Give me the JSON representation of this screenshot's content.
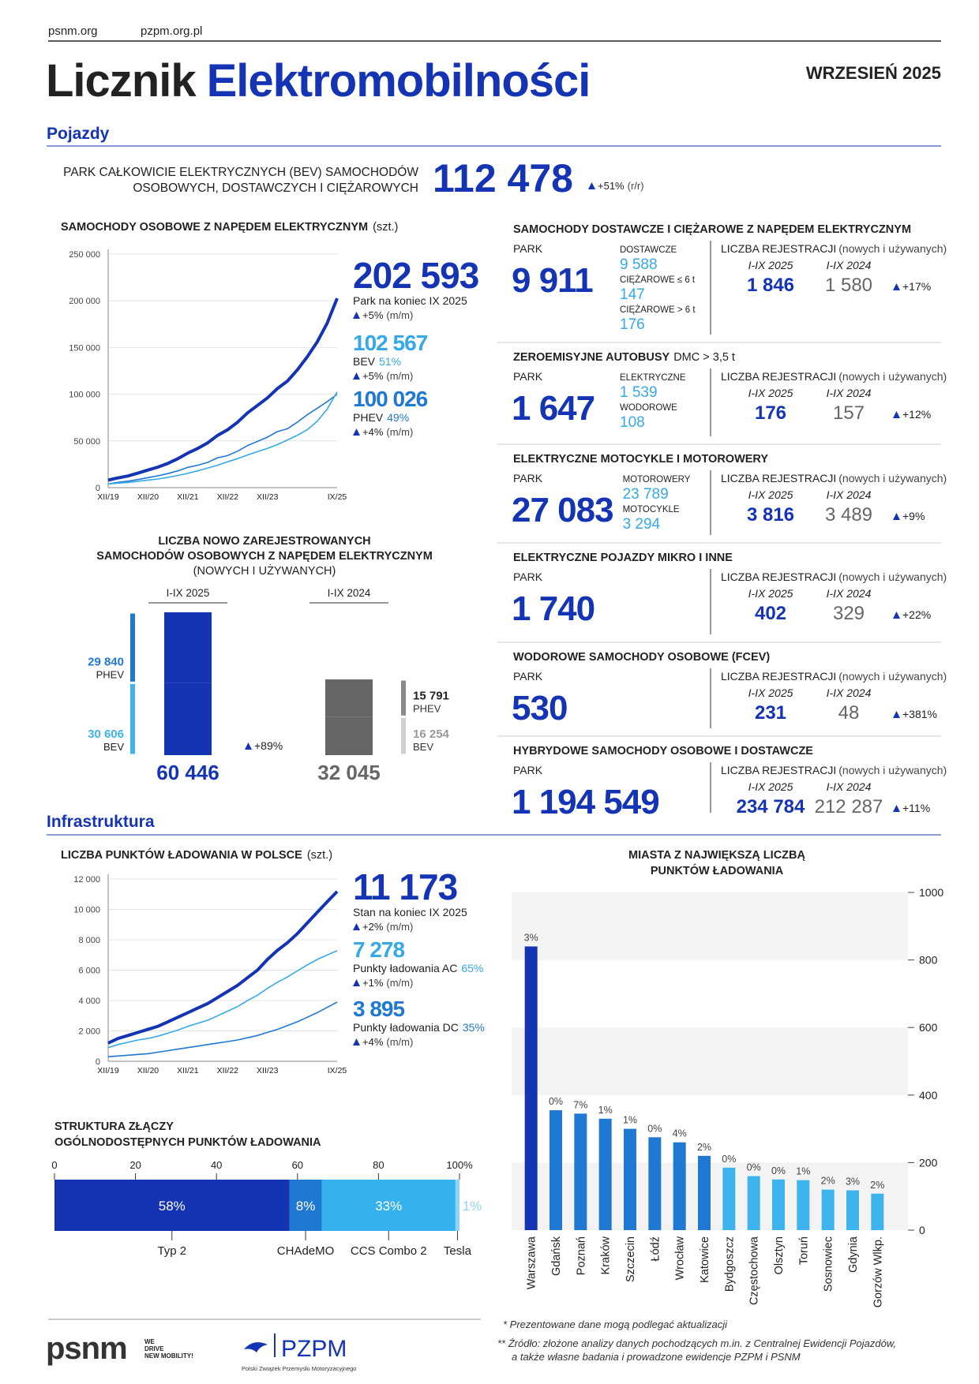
{
  "header": {
    "links": [
      "psnm.org",
      "pzpm.org.pl"
    ],
    "title_dark": "Licznik",
    "title_blue": "Elektromobilności",
    "date": "WRZESIEŃ 2025"
  },
  "vehicles": {
    "heading": "Pojazdy",
    "bev_park": {
      "label": [
        "PARK CAŁKOWICIE ELEKTRYCZNYCH (BEV) SAMOCHODÓW",
        "OSOBOWYCH, DOSTAWCZYCH I CIĘŻAROWYCH"
      ],
      "value": "112 478",
      "change": "+51%",
      "change_note": "(r/r)"
    },
    "panels": [
      {
        "title": "SAMOCHODY DOSTAWCZE I CIĘŻAROWE Z NAPĘDEM ELEKTRYCZNYM",
        "park_label": "PARK",
        "park_value": "9 911",
        "breakdown": [
          {
            "label": "DOSTAWCZE",
            "value": "9 588"
          },
          {
            "label": "CIĘŻAROWE ≤ 6 t",
            "value": "147"
          },
          {
            "label": "CIĘŻAROWE > 6 t",
            "value": "176"
          }
        ],
        "reg_label": "LICZBA REJESTRACJI",
        "reg_note": "(nowych i używanych)",
        "years": [
          "I-IX 2025",
          "I-IX 2024"
        ],
        "reg_values": [
          "1 846",
          "1 580"
        ],
        "change": "+17%"
      },
      {
        "title": "ZEROEMISYJNE AUTOBUSY",
        "title_note": "DMC > 3,5 t",
        "park_label": "PARK",
        "park_value": "1 647",
        "breakdown": [
          {
            "label": "ELEKTRYCZNE",
            "value": "1 539"
          },
          {
            "label": "WODOROWE",
            "value": "108"
          }
        ],
        "reg_label": "LICZBA REJESTRACJI",
        "reg_note": "(nowych i używanych)",
        "years": [
          "I-IX 2025",
          "I-IX 2024"
        ],
        "reg_values": [
          "176",
          "157"
        ],
        "change": "+12%"
      },
      {
        "title": "ELEKTRYCZNE MOTOCYKLE I MOTOROWERY",
        "park_label": "PARK",
        "park_value": "27 083",
        "breakdown": [
          {
            "label": "MOTOROWERY",
            "value": "23 789"
          },
          {
            "label": "MOTOCYKLE",
            "value": "3 294"
          }
        ],
        "reg_label": "LICZBA REJESTRACJI",
        "reg_note": "(nowych i używanych)",
        "years": [
          "I-IX 2025",
          "I-IX 2024"
        ],
        "reg_values": [
          "3 816",
          "3 489"
        ],
        "change": "+9%"
      },
      {
        "title": "ELEKTRYCZNE POJAZDY MIKRO I INNE",
        "park_label": "PARK",
        "park_value": "1 740",
        "reg_label": "LICZBA REJESTRACJI",
        "reg_note": "(nowych i używanych)",
        "years": [
          "I-IX 2025",
          "I-IX 2024"
        ],
        "reg_values": [
          "402",
          "329"
        ],
        "change": "+22%"
      },
      {
        "title": "WODOROWE SAMOCHODY OSOBOWE (FCEV)",
        "park_label": "PARK",
        "park_value": "530",
        "reg_label": "LICZBA REJESTRACJI",
        "reg_note": "(nowych i używanych)",
        "years": [
          "I-IX 2025",
          "I-IX 2024"
        ],
        "reg_values": [
          "231",
          "48"
        ],
        "change": "+381%"
      },
      {
        "title": "HYBRYDOWE SAMOCHODY OSOBOWE I DOSTAWCZE",
        "park_label": "PARK",
        "park_value": "1 194 549",
        "reg_label": "LICZBA REJESTRACJI",
        "reg_note": "(nowych i używanych)",
        "years": [
          "I-IX 2025",
          "I-IX 2024"
        ],
        "reg_values": [
          "234 784",
          "212 287"
        ],
        "change": "+11%"
      }
    ]
  },
  "infrastructure": {
    "heading": "Infrastruktura"
  },
  "chart_data": [
    {
      "type": "line",
      "title": "SAMOCHODY OSOBOWE Z NAPĘDEM ELEKTRYCZNYM",
      "unit": "(szt.)",
      "categories": [
        "XII/19",
        null,
        null,
        null,
        "XII/20",
        null,
        null,
        null,
        "XII/21",
        null,
        null,
        null,
        "XII/22",
        null,
        null,
        null,
        "XII/23",
        null,
        null,
        null,
        null,
        null,
        null,
        "IX/25"
      ],
      "ylim": [
        0,
        250000
      ],
      "yticks": [
        0,
        {
          "value": 50000,
          "label": "50 000"
        },
        {
          "value": 100000,
          "label": "100 000"
        },
        {
          "value": 150000,
          "label": "150 000"
        },
        {
          "value": 200000,
          "label": "200 000"
        },
        {
          "value": 250000,
          "label": "250 000"
        }
      ],
      "grid": true,
      "series": [
        {
          "color": "#1434b4",
          "width": 4,
          "values": [
            8000,
            10500,
            12500,
            15500,
            18800,
            22000,
            26000,
            31000,
            37000,
            42000,
            48000,
            56000,
            62000,
            70000,
            80000,
            88000,
            96000,
            106000,
            114000,
            126000,
            140000,
            156000,
            176000,
            202593
          ],
          "callout": {
            "value": "202 593",
            "caption": "Park na koniec IX 2025",
            "change": "+5%",
            "change_note": "(m/m)"
          }
        },
        {
          "color": "#35a9e8",
          "width": 1.6,
          "values": [
            4000,
            4800,
            5600,
            6800,
            8100,
            9300,
            11000,
            13000,
            15300,
            18000,
            21000,
            24000,
            27700,
            31000,
            35000,
            38500,
            42000,
            46000,
            51000,
            56000,
            62000,
            71000,
            84000,
            102567
          ],
          "callout": {
            "value": "102 567",
            "caption": "BEV",
            "share": "51%",
            "change": "+5%",
            "change_note": "(m/m)"
          }
        },
        {
          "color": "#1f78d1",
          "width": 1.6,
          "values": [
            4000,
            5700,
            6900,
            8700,
            10700,
            12700,
            15000,
            18000,
            21700,
            24000,
            27000,
            32000,
            34300,
            39000,
            45000,
            49500,
            54000,
            60000,
            63000,
            70000,
            78000,
            85000,
            92000,
            100026
          ],
          "callout": {
            "value": "100 026",
            "caption": "PHEV",
            "share": "49%",
            "change": "+4%",
            "change_note": "(m/m)"
          }
        }
      ]
    },
    {
      "type": "stacked_bar",
      "title": [
        "LICZBA NOWO ZAREJESTROWANYCH",
        "SAMOCHODÓW OSOBOWYCH Z NAPĘDEM ELEKTRYCZNYM",
        "(NOWYCH I UŻYWANYCH)"
      ],
      "categories": [
        "I-IX 2025",
        "I-IX 2024"
      ],
      "bar_colors": [
        "#1434b4",
        "#666666"
      ],
      "total_labels": [
        "60 446",
        "32 045"
      ],
      "change": "+89%",
      "series": [
        {
          "name": "PHEV",
          "colors": [
            "#1f78d1",
            "#8a8a8a"
          ],
          "values": [
            29840,
            15791
          ],
          "value_labels": [
            "29 840",
            "15 791"
          ]
        },
        {
          "name": "BEV",
          "colors": [
            "#3db4ee",
            "#cfcfcf"
          ],
          "values": [
            30606,
            16254
          ],
          "value_labels": [
            "30 606",
            "16 254"
          ]
        }
      ]
    },
    {
      "type": "line",
      "title": "LICZBA PUNKTÓW ŁADOWANIA W POLSCE",
      "unit": "(szt.)",
      "categories": [
        "XII/19",
        null,
        null,
        null,
        "XII/20",
        null,
        null,
        null,
        "XII/21",
        null,
        null,
        null,
        "XII/22",
        null,
        null,
        null,
        "XII/23",
        null,
        null,
        null,
        null,
        null,
        null,
        "IX/25"
      ],
      "ylim": [
        0,
        12000
      ],
      "yticks": [
        0,
        {
          "value": 2000,
          "label": "2 000"
        },
        {
          "value": 4000,
          "label": "4 000"
        },
        {
          "value": 6000,
          "label": "6 000"
        },
        {
          "value": 8000,
          "label": "8 000"
        },
        {
          "value": 10000,
          "label": "10 000"
        },
        {
          "value": 12000,
          "label": "12 000"
        }
      ],
      "grid": true,
      "series": [
        {
          "color": "#1434b4",
          "width": 4,
          "values": [
            1200,
            1500,
            1700,
            1900,
            2100,
            2300,
            2600,
            2900,
            3200,
            3500,
            3800,
            4200,
            4600,
            5000,
            5500,
            6000,
            6700,
            7300,
            7800,
            8400,
            9100,
            9800,
            10500,
            11173
          ],
          "callout": {
            "value": "11 173",
            "caption": "Stan na koniec IX 2025",
            "change": "+2%",
            "change_note": "(m/m)"
          }
        },
        {
          "color": "#35a9e8",
          "width": 1.6,
          "values": [
            900,
            1100,
            1250,
            1400,
            1500,
            1650,
            1850,
            2050,
            2300,
            2500,
            2700,
            3000,
            3300,
            3600,
            4000,
            4350,
            4800,
            5200,
            5550,
            5950,
            6350,
            6700,
            7000,
            7278
          ],
          "callout": {
            "value": "7 278",
            "share": "65%",
            "caption": "Punkty ładowania AC",
            "change": "+1%",
            "change_note": "(m/m)"
          }
        },
        {
          "color": "#1f78d1",
          "width": 1.6,
          "values": [
            300,
            350,
            400,
            450,
            500,
            600,
            700,
            800,
            900,
            1000,
            1100,
            1200,
            1300,
            1400,
            1550,
            1700,
            1900,
            2100,
            2350,
            2600,
            2900,
            3200,
            3550,
            3895
          ],
          "callout": {
            "value": "3 895",
            "share": "35%",
            "caption": "Punkty ładowania DC",
            "change": "+4%",
            "change_note": "(m/m)"
          }
        }
      ]
    },
    {
      "type": "stacked_hbar",
      "title": [
        "STRUKTURA ZŁĄCZY",
        "OGÓLNODOSTĘPNYCH PUNKTÓW ŁADOWANIA"
      ],
      "xlim": [
        0,
        100
      ],
      "xticks": [
        0,
        20,
        40,
        60,
        80,
        {
          "value": 100,
          "label": "100%"
        }
      ],
      "series": [
        {
          "name": "Typ 2",
          "color": "#1434b4",
          "value": 58,
          "value_label": "58%"
        },
        {
          "name": "CHAdeMO",
          "color": "#1f78d1",
          "value": 8,
          "value_label": "8%"
        },
        {
          "name": "CCS Combo 2",
          "color": "#35b2ec",
          "value": 33,
          "value_label": "33%"
        },
        {
          "name": "Tesla",
          "color": "#8fd3f6",
          "value": 1,
          "value_label": "1%"
        }
      ]
    },
    {
      "type": "bar",
      "title": [
        "MIASTA Z NAJWIĘKSZĄ LICZBĄ",
        "PUNKTÓW ŁADOWANIA"
      ],
      "categories": [
        "Warszawa",
        "Gdańsk",
        "Poznań",
        "Kraków",
        "Szczecin",
        "Łódź",
        "Wrocław",
        "Katowice",
        "Bydgoszcz",
        "Częstochowa",
        "Olsztyn",
        "Toruń",
        "Sosnowiec",
        "Gdynia",
        "Gorzów Wlkp."
      ],
      "values": [
        840,
        355,
        345,
        330,
        300,
        275,
        260,
        220,
        185,
        160,
        150,
        148,
        120,
        118,
        108
      ],
      "annotations": [
        "3%",
        "0%",
        "7%",
        "1%",
        "1%",
        "0%",
        "4%",
        "2%",
        "0%",
        "0%",
        "0%",
        "1%",
        "2%",
        "3%",
        "2%"
      ],
      "colors": [
        "#1434b4",
        "#1f78d1",
        "#1f78d1",
        "#1f78d1",
        "#1f78d1",
        "#1f78d1",
        "#1f78d1",
        "#1f78d1",
        "#3db4ee",
        "#3db4ee",
        "#3db4ee",
        "#3db4ee",
        "#3db4ee",
        "#3db4ee",
        "#3db4ee"
      ],
      "ylim": [
        0,
        1000
      ],
      "yticks": [
        0,
        200,
        400,
        600,
        800,
        1000
      ],
      "bands": true
    }
  ],
  "footer": {
    "logo_psnm": "psnm",
    "tagline": [
      "WE",
      "DRIVE",
      "NEW MOBILITY!"
    ],
    "logo_pzpm": "PZPM",
    "pzpm_name": "Polski Związek Przemysłu Motoryzacyjnego",
    "notes": [
      "* Prezentowane dane mogą podlegać aktualizacji",
      "** Źródło: złożone analizy danych pochodzących m.in. z Centralnej Ewidencji Pojazdów,",
      "a także własne badania i prowadzone ewidencje PZPM i PSNM"
    ]
  }
}
